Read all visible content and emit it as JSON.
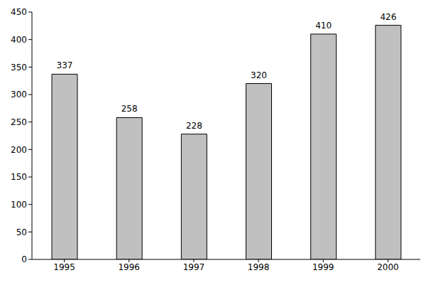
{
  "chart_data": {
    "type": "bar",
    "categories": [
      "1995",
      "1996",
      "1997",
      "1998",
      "1999",
      "2000"
    ],
    "values": [
      337,
      258,
      228,
      320,
      410,
      426
    ],
    "color": "#c0c0c0",
    "ylim": [
      0,
      450
    ],
    "yticks": [
      0,
      50,
      100,
      150,
      200,
      250,
      300,
      350,
      400,
      450
    ],
    "grid": false,
    "data_labels": true
  }
}
